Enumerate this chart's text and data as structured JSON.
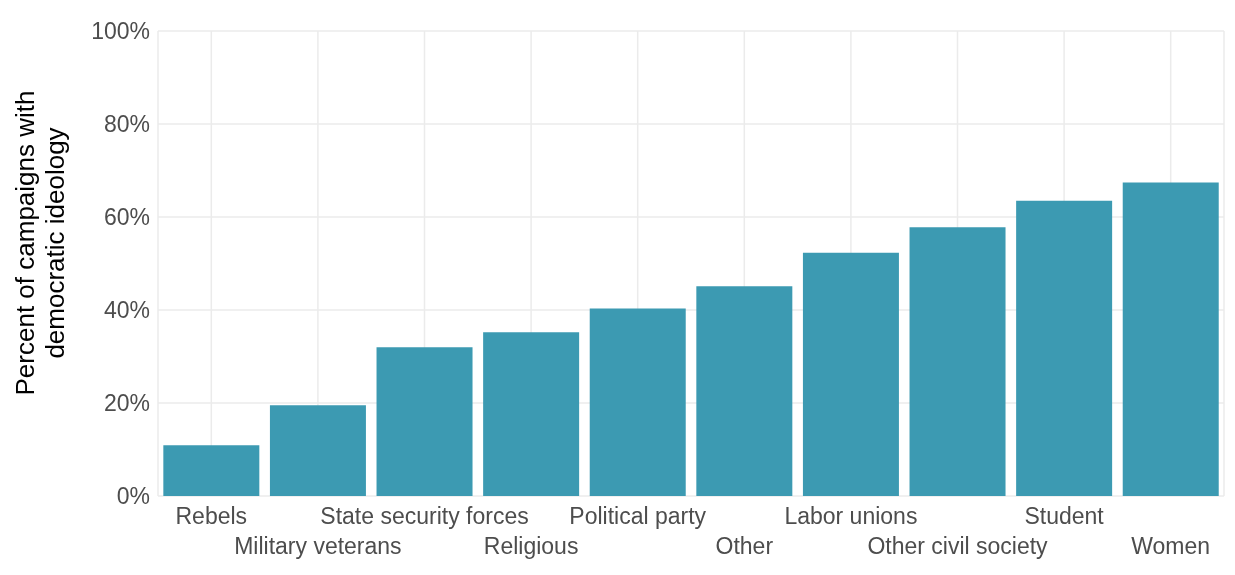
{
  "chart_data": {
    "type": "bar",
    "ylabel": "Percent of campaigns with\ndemocratic ideology",
    "categories": [
      "Rebels",
      "Military veterans",
      "State security forces",
      "Religious",
      "Political party",
      "Other",
      "Labor unions",
      "Other civil society",
      "Student",
      "Women"
    ],
    "values": [
      10.9,
      19.5,
      32,
      35.2,
      40.3,
      45.1,
      52.3,
      57.8,
      63.5,
      67.4
    ],
    "color": "#3c9ab2",
    "ylim": [
      0,
      100
    ],
    "yticks": [
      {
        "value": 0,
        "label": "0%"
      },
      {
        "value": 20,
        "label": "20%"
      },
      {
        "value": 40,
        "label": "40%"
      },
      {
        "value": 60,
        "label": "60%"
      },
      {
        "value": 80,
        "label": "80%"
      },
      {
        "value": 100,
        "label": "100%"
      }
    ],
    "grid": true
  }
}
